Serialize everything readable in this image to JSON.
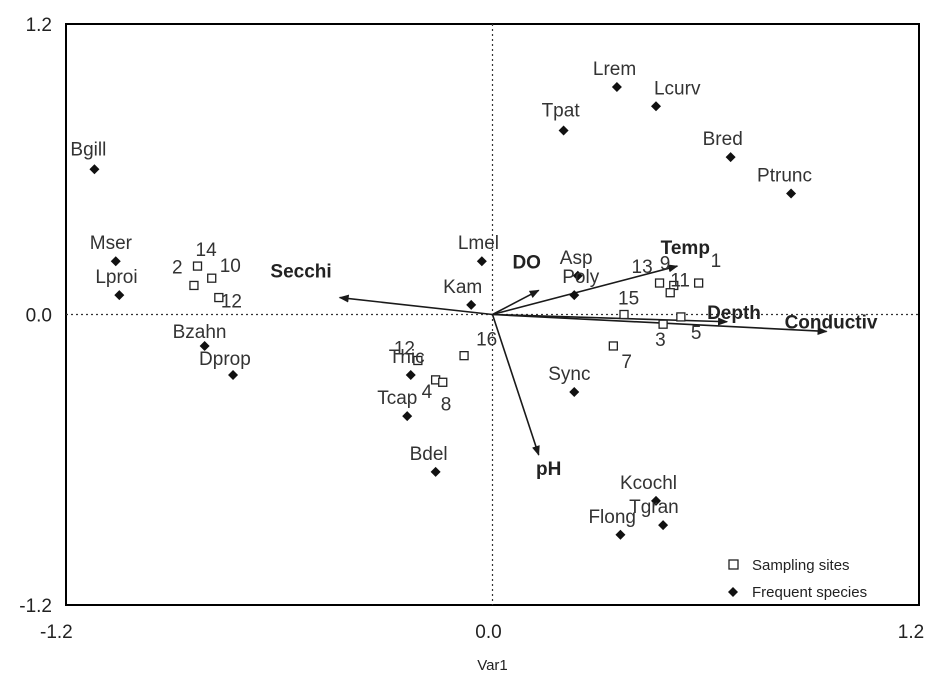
{
  "chart_data": {
    "type": "scatter",
    "xlabel": "Var1",
    "ylabel": "",
    "xlim": [
      -1.2,
      1.2
    ],
    "ylim": [
      -1.2,
      1.2
    ],
    "x_ticks": [
      "-1.2",
      "0.0",
      "1.2"
    ],
    "y_ticks": [
      "1.2",
      "0.0",
      "-1.2"
    ],
    "grid": false,
    "legend_position": "bottom-right",
    "series": [
      {
        "name": "Sampling sites",
        "marker": "open-square",
        "points": [
          {
            "label": "1",
            "x": 0.58,
            "y": 0.13
          },
          {
            "label": "2",
            "x": -0.84,
            "y": 0.12
          },
          {
            "label": "3",
            "x": 0.48,
            "y": -0.04
          },
          {
            "label": "4",
            "x": -0.16,
            "y": -0.27
          },
          {
            "label": "5",
            "x": 0.53,
            "y": -0.01
          },
          {
            "label": "7",
            "x": 0.34,
            "y": -0.13
          },
          {
            "label": "8",
            "x": -0.14,
            "y": -0.28
          },
          {
            "label": "9",
            "x": 0.51,
            "y": 0.12
          },
          {
            "label": "10",
            "x": -0.79,
            "y": 0.15
          },
          {
            "label": "11",
            "x": 0.5,
            "y": 0.09
          },
          {
            "label": "12",
            "x": -0.77,
            "y": 0.07
          },
          {
            "label": "13",
            "x": 0.47,
            "y": 0.13
          },
          {
            "label": "14",
            "x": -0.83,
            "y": 0.2
          },
          {
            "label": "15",
            "x": 0.37,
            "y": 0.0
          },
          {
            "label": "16",
            "x": -0.08,
            "y": -0.17
          },
          {
            "label": "12",
            "x": -0.21,
            "y": -0.19
          }
        ]
      },
      {
        "name": "Frequent species",
        "marker": "filled-diamond",
        "points": [
          {
            "label": "Bgill",
            "x": -1.12,
            "y": 0.6
          },
          {
            "label": "Mser",
            "x": -1.06,
            "y": 0.22
          },
          {
            "label": "Lproi",
            "x": -1.05,
            "y": 0.08
          },
          {
            "label": "Bzahn",
            "x": -0.81,
            "y": -0.13
          },
          {
            "label": "Dprop",
            "x": -0.73,
            "y": -0.25
          },
          {
            "label": "Lmel",
            "x": -0.03,
            "y": 0.22
          },
          {
            "label": "Kam",
            "x": -0.06,
            "y": 0.04
          },
          {
            "label": "Thic",
            "x": -0.23,
            "y": -0.25
          },
          {
            "label": "Tcap",
            "x": -0.24,
            "y": -0.42
          },
          {
            "label": "Bdel",
            "x": -0.16,
            "y": -0.65
          },
          {
            "label": "Asp",
            "x": 0.24,
            "y": 0.16
          },
          {
            "label": "Poly",
            "x": 0.23,
            "y": 0.08
          },
          {
            "label": "Sync",
            "x": 0.23,
            "y": -0.32
          },
          {
            "label": "Lrem",
            "x": 0.35,
            "y": 0.94
          },
          {
            "label": "Lcurv",
            "x": 0.46,
            "y": 0.86
          },
          {
            "label": "Tpat",
            "x": 0.2,
            "y": 0.76
          },
          {
            "label": "Bred",
            "x": 0.67,
            "y": 0.65
          },
          {
            "label": "Ptrunc",
            "x": 0.84,
            "y": 0.5
          },
          {
            "label": "Kcochl",
            "x": 0.46,
            "y": -0.77
          },
          {
            "label": "Tgran",
            "x": 0.48,
            "y": -0.87
          },
          {
            "label": "Flong",
            "x": 0.36,
            "y": -0.91
          }
        ]
      }
    ],
    "vectors": [
      {
        "name": "Secchi",
        "x": -0.43,
        "y": 0.07
      },
      {
        "name": "DO",
        "x": 0.13,
        "y": 0.1
      },
      {
        "name": "Temp",
        "x": 0.52,
        "y": 0.2
      },
      {
        "name": "Depth",
        "x": 0.66,
        "y": -0.03
      },
      {
        "name": "Conductiv",
        "x": 0.94,
        "y": -0.07
      },
      {
        "name": "pH",
        "x": 0.13,
        "y": -0.58
      }
    ]
  }
}
